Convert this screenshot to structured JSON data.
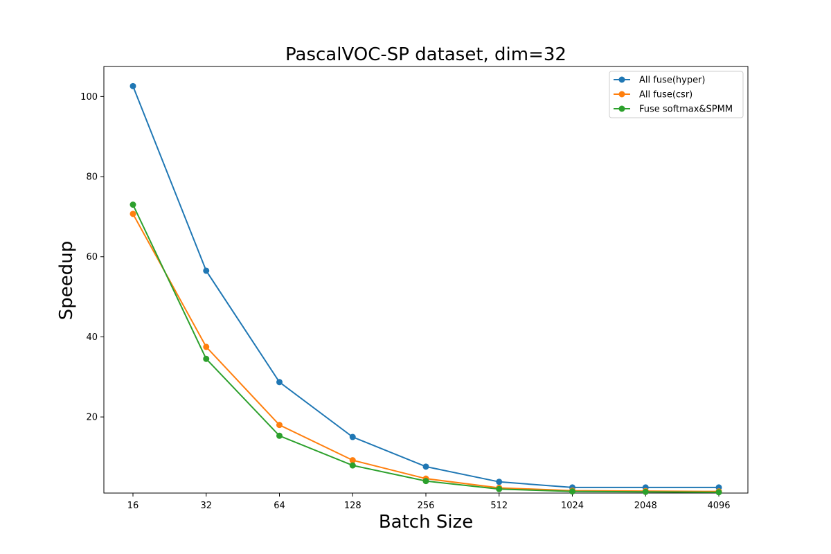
{
  "chart_data": {
    "type": "line",
    "title": "PascalVOC-SP dataset, dim=32",
    "xlabel": "Batch Size",
    "ylabel": "Speedup",
    "categories": [
      "16",
      "32",
      "64",
      "128",
      "256",
      "512",
      "1024",
      "2048",
      "4096"
    ],
    "y_ticks": [
      20,
      40,
      60,
      80,
      100
    ],
    "ylim": [
      1,
      107.5
    ],
    "grid": false,
    "legend_position": "top-right",
    "series": [
      {
        "name": "All fuse(hyper)",
        "color": "#1f77b4",
        "values": [
          102.6,
          56.5,
          28.7,
          15.0,
          7.6,
          3.8,
          2.4,
          2.4,
          2.4
        ]
      },
      {
        "name": "All fuse(csr)",
        "color": "#ff7f0e",
        "values": [
          70.7,
          37.5,
          18.0,
          9.2,
          4.6,
          2.3,
          1.6,
          1.5,
          1.4
        ]
      },
      {
        "name": "Fuse softmax&SPMM",
        "color": "#2ca02c",
        "values": [
          73.0,
          34.5,
          15.3,
          7.9,
          4.0,
          2.0,
          1.4,
          1.3,
          1.2
        ]
      }
    ]
  }
}
